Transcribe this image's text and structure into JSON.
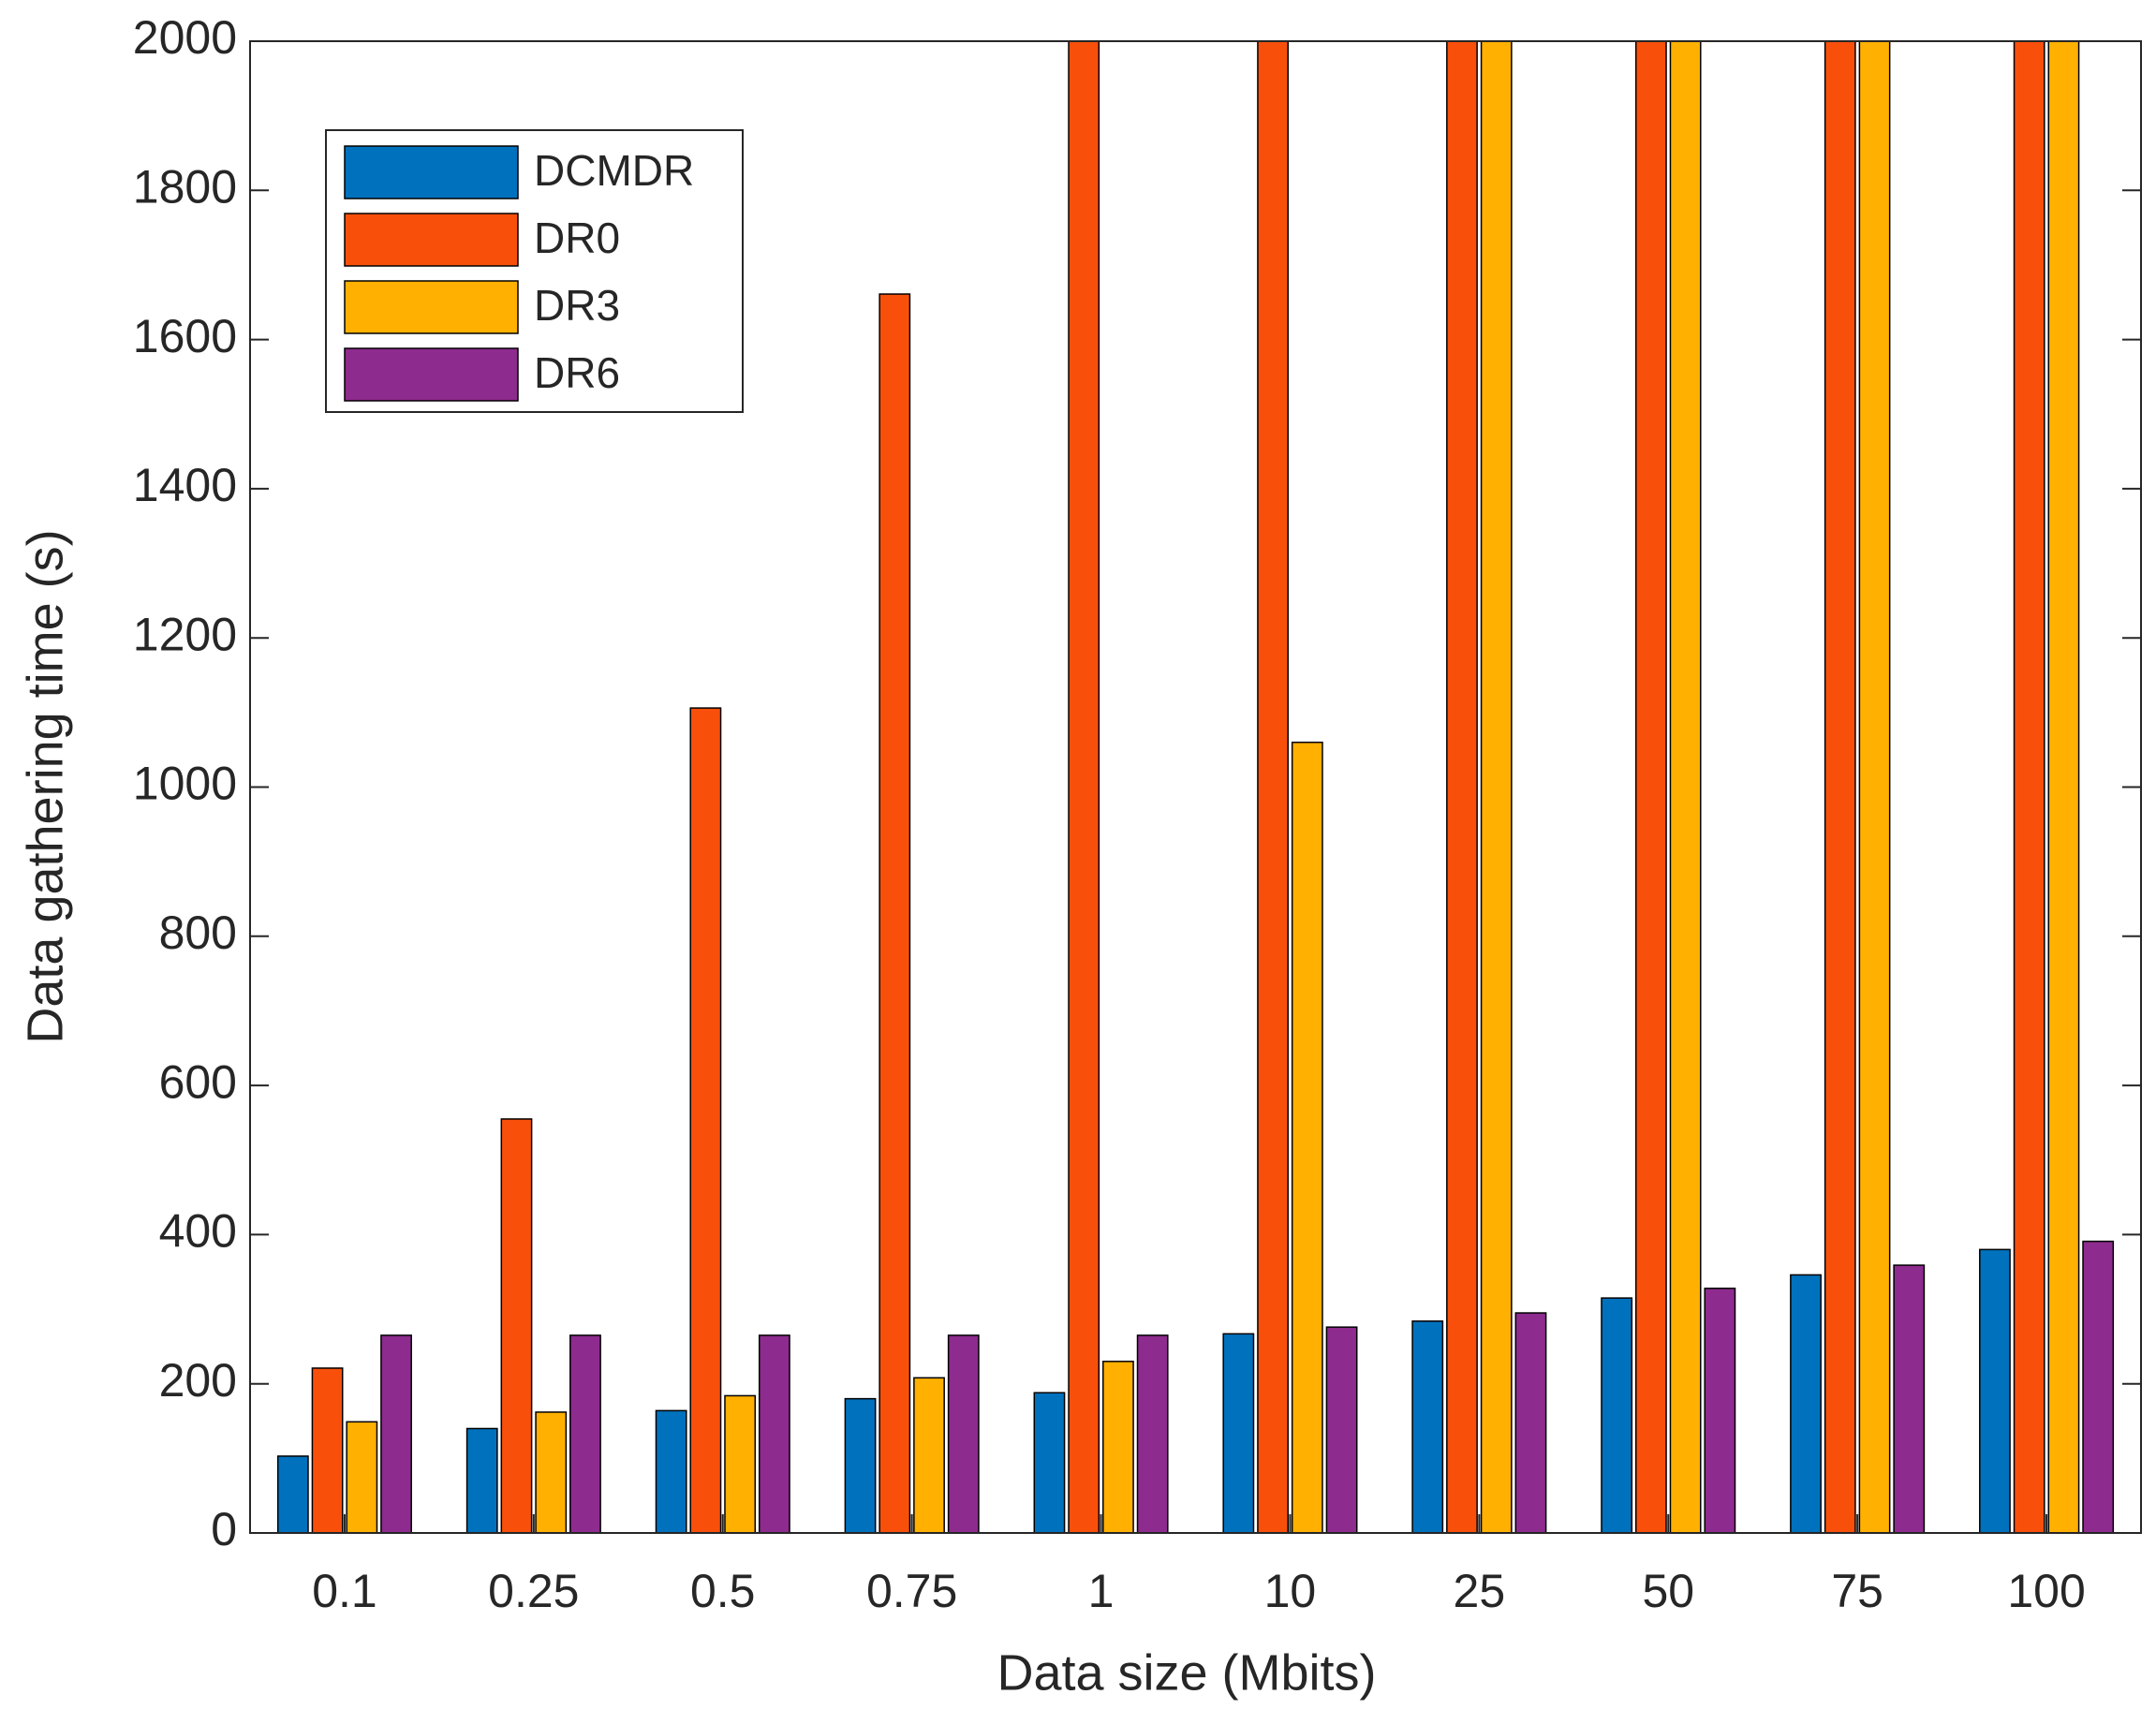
{
  "chart_data": {
    "type": "bar",
    "xlabel": "Data size (Mbits)",
    "ylabel": "Data gathering time (s)",
    "categories": [
      "0.1",
      "0.25",
      "0.5",
      "0.75",
      "1",
      "10",
      "25",
      "50",
      "75",
      "100"
    ],
    "series": [
      {
        "name": "DCMDR",
        "color": "#0072bd",
        "values": [
          103,
          140,
          164,
          180,
          188,
          267,
          284,
          315,
          346,
          380
        ]
      },
      {
        "name": "DR0",
        "color": "#f8500b",
        "values": [
          221,
          555,
          1106,
          1661,
          2000,
          2000,
          2000,
          2000,
          2000,
          2000
        ]
      },
      {
        "name": "DR3",
        "color": "#ffb000",
        "values": [
          149,
          162,
          184,
          208,
          230,
          1060,
          2000,
          2000,
          2000,
          2000
        ]
      },
      {
        "name": "DR6",
        "color": "#8e2b8e",
        "values": [
          265,
          265,
          265,
          265,
          265,
          276,
          295,
          328,
          359,
          391
        ]
      }
    ],
    "ylim": [
      0,
      2000
    ],
    "yticks": [
      0,
      200,
      400,
      600,
      800,
      1000,
      1200,
      1400,
      1600,
      1800,
      2000
    ],
    "legend": "upper left"
  }
}
